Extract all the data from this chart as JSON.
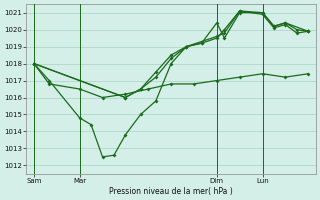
{
  "title": "Pression niveau de la mer( hPa )",
  "bg_color": "#d4eee8",
  "grid_color": "#b0d8cc",
  "line_color": "#1a6b1a",
  "ylim": [
    1011.5,
    1021.5
  ],
  "yticks": [
    1012,
    1013,
    1014,
    1015,
    1016,
    1017,
    1018,
    1019,
    1020,
    1021
  ],
  "xtick_labels": [
    "Sam",
    "Mar",
    "Dim",
    "Lun"
  ],
  "xtick_positions": [
    0,
    24,
    96,
    120
  ],
  "xlim": [
    -4,
    148
  ],
  "vlines": [
    0,
    24,
    96,
    120
  ],
  "series1_flat": {
    "x": [
      0,
      8,
      24,
      36,
      48,
      60,
      72,
      84,
      96,
      108,
      120,
      132,
      144
    ],
    "y": [
      1018.0,
      1016.8,
      1016.5,
      1016.0,
      1016.2,
      1016.5,
      1016.8,
      1016.8,
      1017.0,
      1017.2,
      1017.4,
      1017.2,
      1017.4
    ]
  },
  "series2_dip": {
    "x": [
      0,
      8,
      24,
      30,
      36,
      42,
      48,
      56,
      64,
      72,
      80,
      88,
      96,
      100,
      108,
      120,
      126,
      132,
      144
    ],
    "y": [
      1018.0,
      1017.0,
      1014.8,
      1014.4,
      1012.5,
      1012.6,
      1013.8,
      1015.0,
      1015.8,
      1018.0,
      1019.0,
      1019.2,
      1020.4,
      1019.5,
      1021.0,
      1021.0,
      1020.2,
      1020.4,
      1019.9
    ]
  },
  "series3_upper": {
    "x": [
      0,
      48,
      56,
      64,
      72,
      80,
      88,
      96,
      100,
      108,
      120,
      126,
      132,
      138,
      144
    ],
    "y": [
      1018.0,
      1016.0,
      1016.5,
      1017.5,
      1018.5,
      1019.0,
      1019.2,
      1019.5,
      1020.0,
      1021.1,
      1021.0,
      1020.2,
      1020.4,
      1020.0,
      1019.9
    ]
  },
  "series4_upper2": {
    "x": [
      0,
      48,
      56,
      64,
      72,
      80,
      88,
      96,
      100,
      108,
      120,
      126,
      132,
      138,
      144
    ],
    "y": [
      1018.0,
      1016.0,
      1016.5,
      1017.2,
      1018.3,
      1019.0,
      1019.3,
      1019.6,
      1019.8,
      1021.1,
      1020.9,
      1020.1,
      1020.3,
      1019.8,
      1019.9
    ]
  }
}
